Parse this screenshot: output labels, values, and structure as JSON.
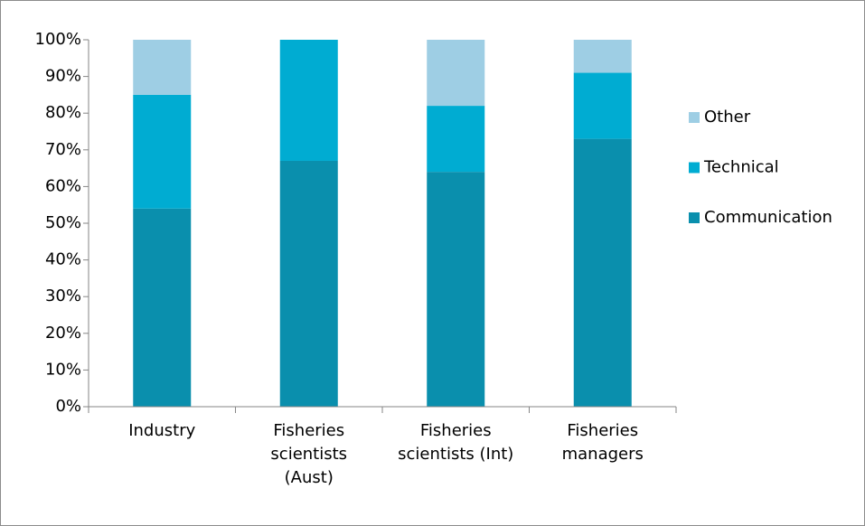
{
  "chart_data": {
    "type": "stacked_bar",
    "categories": [
      "Industry",
      "Fisheries\nscientists\n(Aust)",
      "Fisheries\nscientists (Int)",
      "Fisheries\nmanagers"
    ],
    "series": [
      {
        "name": "Communication",
        "color": "#0a8fad",
        "values": [
          54,
          67,
          64,
          73
        ]
      },
      {
        "name": "Technical",
        "color": "#00acd2",
        "values": [
          31,
          33,
          18,
          18
        ]
      },
      {
        "name": "Other",
        "color": "#9ecee4",
        "values": [
          15,
          0,
          18,
          9
        ]
      }
    ],
    "ylim": [
      0,
      100
    ],
    "yticks": [
      {
        "value": 0,
        "label": "0%"
      },
      {
        "value": 10,
        "label": "10%"
      },
      {
        "value": 20,
        "label": "20%"
      },
      {
        "value": 30,
        "label": "30%"
      },
      {
        "value": 40,
        "label": "40%"
      },
      {
        "value": 50,
        "label": "50%"
      },
      {
        "value": 60,
        "label": "60%"
      },
      {
        "value": 70,
        "label": "70%"
      },
      {
        "value": 80,
        "label": "80%"
      },
      {
        "value": 90,
        "label": "90%"
      },
      {
        "value": 100,
        "label": "100%"
      }
    ],
    "grid": false,
    "legend": "right"
  }
}
